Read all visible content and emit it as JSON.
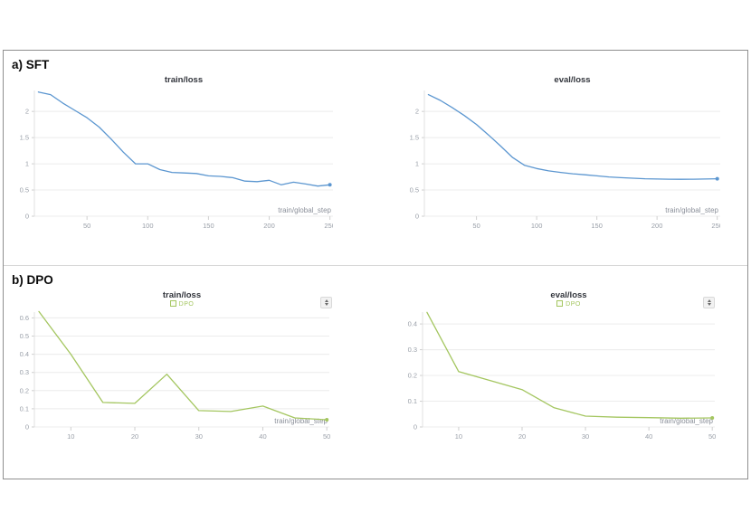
{
  "page": {
    "section_a_label": "a) SFT",
    "section_b_label": "b) DPO"
  },
  "colors": {
    "sft_line": "#5b96d0",
    "dpo_line": "#a4c660",
    "grid": "#ececec",
    "axis": "#e0e0e0",
    "tick_mark": "#cfcfcf",
    "tick_text": "#999fa8",
    "axis_label_text": "#8b909a",
    "title_text": "#32353c",
    "panel_border": "#8f8f8f"
  },
  "icons": {
    "chart_selector": "chevron-up-down-icon",
    "legend_swatch": "legend-checkbox-icon"
  },
  "chart_data": [
    {
      "name": "sft-train-loss",
      "type": "line",
      "title": "train/loss",
      "xlabel": "train/global_step",
      "xlim": [
        6.7,
        252.5
      ],
      "ylim": [
        0,
        2.4
      ],
      "xticks": [
        50,
        100,
        150,
        200,
        250
      ],
      "yticks": [
        0,
        0.5,
        1,
        1.5,
        2
      ],
      "grid": true,
      "legend_label": null,
      "has_selector": false,
      "series": [
        {
          "name": "SFT",
          "color": "#5b96d0",
          "x": [
            10,
            20,
            30,
            40,
            50,
            60,
            70,
            80,
            90,
            100,
            110,
            120,
            130,
            140,
            150,
            160,
            170,
            180,
            190,
            200,
            210,
            220,
            230,
            240,
            250
          ],
          "y": [
            2.37,
            2.32,
            2.16,
            2.02,
            1.88,
            1.7,
            1.47,
            1.22,
            1.0,
            1.0,
            0.89,
            0.835,
            0.825,
            0.815,
            0.77,
            0.76,
            0.735,
            0.67,
            0.66,
            0.685,
            0.6,
            0.65,
            0.615,
            0.575,
            0.6
          ]
        }
      ]
    },
    {
      "name": "sft-eval-loss",
      "type": "line",
      "title": "eval/loss",
      "xlabel": "train/global_step",
      "xlim": [
        6.7,
        252.5
      ],
      "ylim": [
        0,
        2.4
      ],
      "xticks": [
        50,
        100,
        150,
        200,
        250
      ],
      "yticks": [
        0,
        0.5,
        1,
        1.5,
        2
      ],
      "grid": true,
      "legend_label": null,
      "has_selector": false,
      "series": [
        {
          "name": "SFT",
          "color": "#5b96d0",
          "x": [
            10,
            20,
            30,
            40,
            50,
            60,
            70,
            80,
            90,
            100,
            110,
            120,
            130,
            140,
            150,
            160,
            170,
            180,
            190,
            200,
            210,
            220,
            230,
            240,
            250
          ],
          "y": [
            2.32,
            2.21,
            2.07,
            1.92,
            1.75,
            1.55,
            1.34,
            1.12,
            0.97,
            0.91,
            0.865,
            0.835,
            0.81,
            0.79,
            0.77,
            0.75,
            0.735,
            0.725,
            0.715,
            0.71,
            0.707,
            0.705,
            0.707,
            0.71,
            0.715
          ]
        }
      ]
    },
    {
      "name": "dpo-train-loss",
      "type": "line",
      "title": "train/loss",
      "xlabel": "train/global_step",
      "xlim": [
        4.3,
        50.4
      ],
      "ylim": [
        0,
        0.632
      ],
      "xticks": [
        10,
        20,
        30,
        40,
        50
      ],
      "yticks": [
        0,
        0.1,
        0.2,
        0.3,
        0.4,
        0.5,
        0.6
      ],
      "grid": true,
      "legend_label": "DPO",
      "has_selector": true,
      "series": [
        {
          "name": "DPO",
          "color": "#a4c660",
          "x": [
            5,
            10,
            15,
            20,
            25,
            30,
            35,
            40,
            45,
            50
          ],
          "y": [
            0.635,
            0.4,
            0.135,
            0.13,
            0.29,
            0.09,
            0.085,
            0.115,
            0.05,
            0.04
          ]
        }
      ]
    },
    {
      "name": "dpo-eval-loss",
      "type": "line",
      "title": "eval/loss",
      "xlabel": "train/global_step",
      "xlim": [
        4.3,
        50.4
      ],
      "ylim": [
        0,
        0.446
      ],
      "xticks": [
        10,
        20,
        30,
        40,
        50
      ],
      "yticks": [
        0,
        0.1,
        0.2,
        0.3,
        0.4
      ],
      "grid": true,
      "legend_label": "DPO",
      "has_selector": true,
      "series": [
        {
          "name": "DPO",
          "color": "#a4c660",
          "x": [
            5,
            10,
            15,
            20,
            25,
            30,
            35,
            40,
            45,
            50
          ],
          "y": [
            0.445,
            0.215,
            0.18,
            0.145,
            0.075,
            0.042,
            0.038,
            0.036,
            0.034,
            0.035
          ]
        }
      ]
    }
  ]
}
